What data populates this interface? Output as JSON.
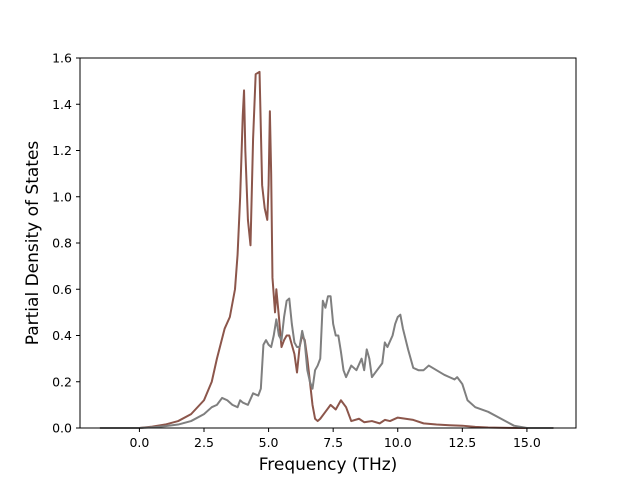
{
  "chart_data": {
    "type": "line",
    "title": "",
    "xlabel": "Frequency (THz)",
    "ylabel": "Partial Density of States",
    "xlim": [
      -2.3,
      16.9
    ],
    "ylim": [
      0.0,
      1.6
    ],
    "x_ticks": [
      0.0,
      2.5,
      5.0,
      7.5,
      10.0,
      12.5,
      15.0
    ],
    "x_tick_labels": [
      "0.0",
      "2.5",
      "5.0",
      "7.5",
      "10.0",
      "12.5",
      "15.0"
    ],
    "y_ticks": [
      0.0,
      0.2,
      0.4,
      0.6,
      0.8,
      1.0,
      1.2,
      1.4,
      1.6
    ],
    "y_tick_labels": [
      "0.0",
      "0.2",
      "0.4",
      "0.6",
      "0.8",
      "1.0",
      "1.2",
      "1.4",
      "1.6"
    ],
    "grid": false,
    "legend": "none",
    "series": [
      {
        "color": "#8c564b",
        "points": [
          [
            -1.5,
            0.0
          ],
          [
            0.0,
            0.0
          ],
          [
            0.5,
            0.006
          ],
          [
            1.0,
            0.015
          ],
          [
            1.5,
            0.03
          ],
          [
            2.0,
            0.06
          ],
          [
            2.5,
            0.12
          ],
          [
            2.8,
            0.2
          ],
          [
            3.0,
            0.3
          ],
          [
            3.3,
            0.43
          ],
          [
            3.5,
            0.48
          ],
          [
            3.7,
            0.6
          ],
          [
            3.8,
            0.75
          ],
          [
            3.9,
            1.0
          ],
          [
            4.0,
            1.35
          ],
          [
            4.05,
            1.46
          ],
          [
            4.1,
            1.2
          ],
          [
            4.2,
            0.9
          ],
          [
            4.3,
            0.79
          ],
          [
            4.4,
            1.25
          ],
          [
            4.5,
            1.53
          ],
          [
            4.65,
            1.54
          ],
          [
            4.75,
            1.05
          ],
          [
            4.85,
            0.95
          ],
          [
            4.95,
            0.9
          ],
          [
            5.0,
            1.05
          ],
          [
            5.05,
            1.37
          ],
          [
            5.1,
            1.1
          ],
          [
            5.15,
            0.65
          ],
          [
            5.25,
            0.5
          ],
          [
            5.3,
            0.6
          ],
          [
            5.4,
            0.48
          ],
          [
            5.5,
            0.35
          ],
          [
            5.6,
            0.38
          ],
          [
            5.7,
            0.4
          ],
          [
            5.8,
            0.4
          ],
          [
            5.9,
            0.36
          ],
          [
            6.0,
            0.32
          ],
          [
            6.1,
            0.24
          ],
          [
            6.2,
            0.35
          ],
          [
            6.3,
            0.4
          ],
          [
            6.4,
            0.38
          ],
          [
            6.5,
            0.3
          ],
          [
            6.6,
            0.2
          ],
          [
            6.7,
            0.1
          ],
          [
            6.8,
            0.04
          ],
          [
            6.9,
            0.03
          ],
          [
            7.0,
            0.04
          ],
          [
            7.2,
            0.07
          ],
          [
            7.4,
            0.1
          ],
          [
            7.6,
            0.08
          ],
          [
            7.8,
            0.12
          ],
          [
            8.0,
            0.09
          ],
          [
            8.2,
            0.03
          ],
          [
            8.5,
            0.04
          ],
          [
            8.7,
            0.025
          ],
          [
            9.0,
            0.03
          ],
          [
            9.3,
            0.02
          ],
          [
            9.5,
            0.035
          ],
          [
            9.7,
            0.03
          ],
          [
            10.0,
            0.045
          ],
          [
            10.3,
            0.04
          ],
          [
            10.6,
            0.035
          ],
          [
            11.0,
            0.02
          ],
          [
            11.5,
            0.015
          ],
          [
            12.0,
            0.012
          ],
          [
            12.5,
            0.01
          ],
          [
            13.0,
            0.005
          ],
          [
            13.5,
            0.002
          ],
          [
            14.0,
            0.001
          ],
          [
            15.0,
            0.0
          ],
          [
            16.0,
            0.0
          ]
        ]
      },
      {
        "color": "#7f7f7f",
        "points": [
          [
            -1.5,
            0.0
          ],
          [
            0.0,
            0.0
          ],
          [
            0.5,
            0.003
          ],
          [
            1.0,
            0.008
          ],
          [
            1.5,
            0.015
          ],
          [
            2.0,
            0.03
          ],
          [
            2.5,
            0.06
          ],
          [
            2.8,
            0.09
          ],
          [
            3.0,
            0.1
          ],
          [
            3.2,
            0.13
          ],
          [
            3.4,
            0.12
          ],
          [
            3.6,
            0.1
          ],
          [
            3.8,
            0.09
          ],
          [
            3.9,
            0.12
          ],
          [
            4.0,
            0.11
          ],
          [
            4.2,
            0.1
          ],
          [
            4.4,
            0.15
          ],
          [
            4.6,
            0.14
          ],
          [
            4.7,
            0.17
          ],
          [
            4.8,
            0.36
          ],
          [
            4.9,
            0.38
          ],
          [
            5.0,
            0.36
          ],
          [
            5.1,
            0.35
          ],
          [
            5.2,
            0.4
          ],
          [
            5.3,
            0.47
          ],
          [
            5.4,
            0.4
          ],
          [
            5.5,
            0.38
          ],
          [
            5.6,
            0.48
          ],
          [
            5.7,
            0.55
          ],
          [
            5.8,
            0.56
          ],
          [
            5.9,
            0.45
          ],
          [
            6.0,
            0.37
          ],
          [
            6.1,
            0.35
          ],
          [
            6.2,
            0.35
          ],
          [
            6.3,
            0.42
          ],
          [
            6.4,
            0.37
          ],
          [
            6.5,
            0.25
          ],
          [
            6.6,
            0.2
          ],
          [
            6.7,
            0.17
          ],
          [
            6.8,
            0.25
          ],
          [
            6.9,
            0.27
          ],
          [
            7.0,
            0.3
          ],
          [
            7.1,
            0.55
          ],
          [
            7.2,
            0.52
          ],
          [
            7.3,
            0.57
          ],
          [
            7.4,
            0.57
          ],
          [
            7.5,
            0.45
          ],
          [
            7.6,
            0.4
          ],
          [
            7.7,
            0.4
          ],
          [
            7.8,
            0.33
          ],
          [
            7.9,
            0.25
          ],
          [
            8.0,
            0.22
          ],
          [
            8.2,
            0.27
          ],
          [
            8.4,
            0.25
          ],
          [
            8.6,
            0.3
          ],
          [
            8.7,
            0.25
          ],
          [
            8.8,
            0.34
          ],
          [
            8.9,
            0.3
          ],
          [
            9.0,
            0.22
          ],
          [
            9.2,
            0.25
          ],
          [
            9.4,
            0.28
          ],
          [
            9.5,
            0.37
          ],
          [
            9.6,
            0.35
          ],
          [
            9.8,
            0.4
          ],
          [
            9.9,
            0.45
          ],
          [
            10.0,
            0.48
          ],
          [
            10.1,
            0.49
          ],
          [
            10.2,
            0.43
          ],
          [
            10.4,
            0.34
          ],
          [
            10.6,
            0.26
          ],
          [
            10.8,
            0.25
          ],
          [
            11.0,
            0.25
          ],
          [
            11.2,
            0.27
          ],
          [
            11.5,
            0.25
          ],
          [
            11.8,
            0.23
          ],
          [
            12.0,
            0.22
          ],
          [
            12.2,
            0.21
          ],
          [
            12.3,
            0.22
          ],
          [
            12.5,
            0.19
          ],
          [
            12.7,
            0.12
          ],
          [
            13.0,
            0.09
          ],
          [
            13.5,
            0.07
          ],
          [
            14.0,
            0.04
          ],
          [
            14.5,
            0.01
          ],
          [
            15.0,
            0.0
          ],
          [
            16.0,
            0.0
          ]
        ]
      }
    ]
  }
}
